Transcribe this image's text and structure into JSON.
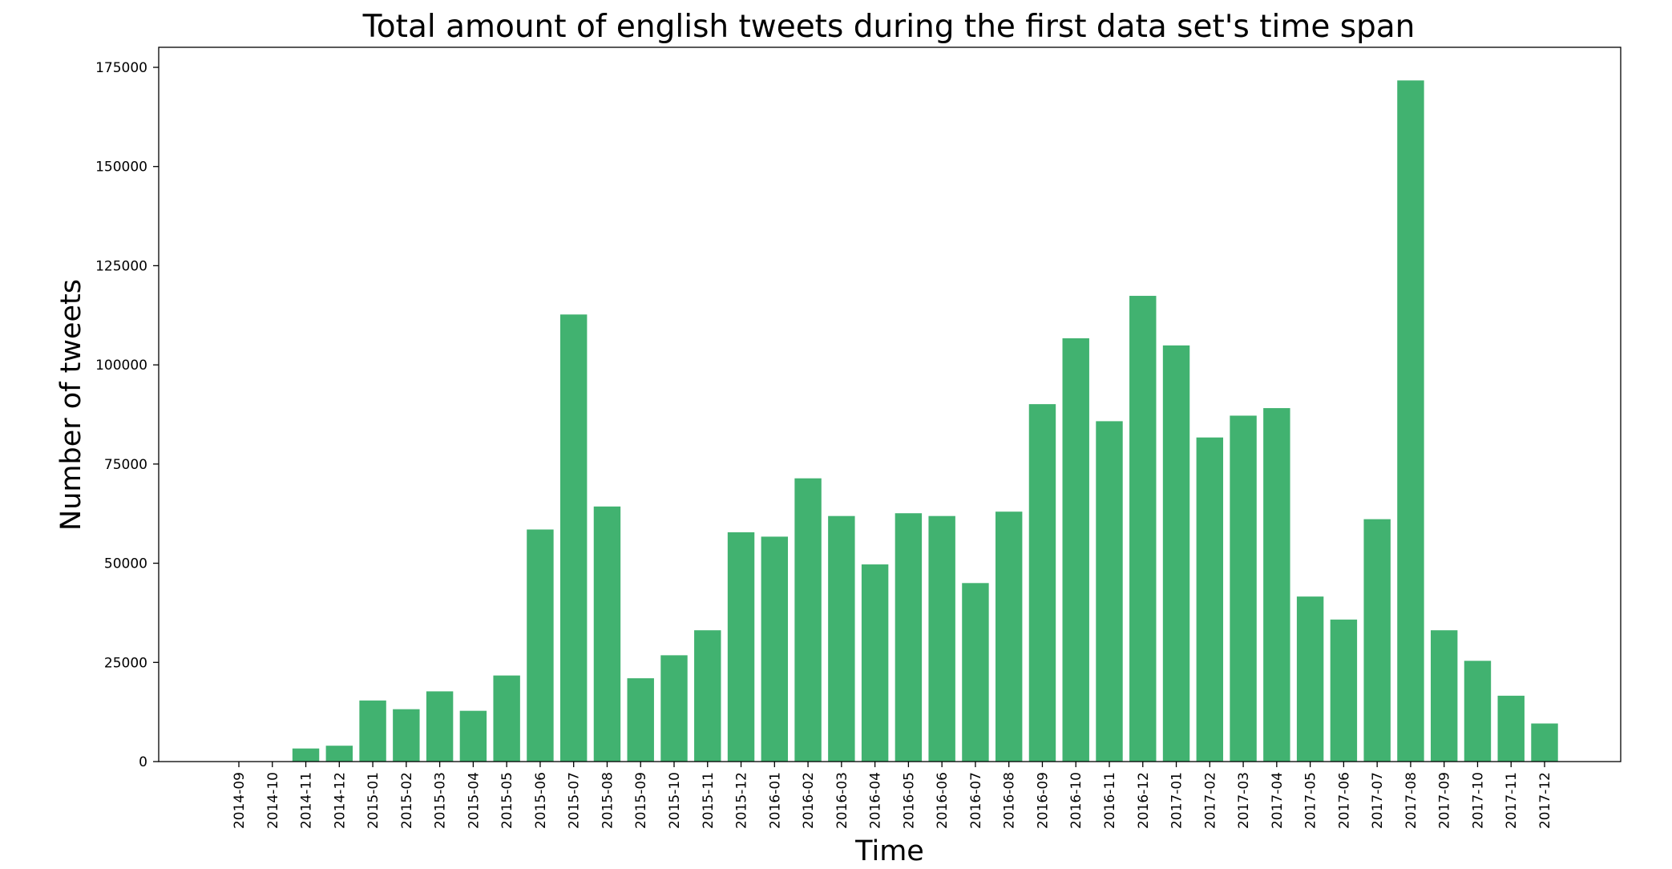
{
  "chart_data": {
    "type": "bar",
    "title": "Total amount of english tweets during the first data set's time span",
    "xlabel": "Time",
    "ylabel": "Number of tweets",
    "ylim": [
      0,
      180000
    ],
    "yticks": [
      0,
      25000,
      50000,
      75000,
      100000,
      125000,
      150000,
      175000
    ],
    "grid": false,
    "bar_color": "#41b270",
    "categories": [
      "2014-09",
      "2014-10",
      "2014-11",
      "2014-12",
      "2015-01",
      "2015-02",
      "2015-03",
      "2015-04",
      "2015-05",
      "2015-06",
      "2015-07",
      "2015-08",
      "2015-09",
      "2015-10",
      "2015-11",
      "2015-12",
      "2016-01",
      "2016-02",
      "2016-03",
      "2016-04",
      "2016-05",
      "2016-06",
      "2016-07",
      "2016-08",
      "2016-09",
      "2016-10",
      "2016-11",
      "2016-12",
      "2017-01",
      "2017-02",
      "2017-03",
      "2017-04",
      "2017-05",
      "2017-06",
      "2017-07",
      "2017-08",
      "2017-09",
      "2017-10",
      "2017-11",
      "2017-12"
    ],
    "values": [
      0,
      0,
      3300,
      4000,
      15400,
      13200,
      17700,
      12800,
      21700,
      58500,
      112700,
      64300,
      21000,
      26800,
      33100,
      57800,
      56700,
      71400,
      61900,
      49700,
      62600,
      61900,
      45000,
      63000,
      90100,
      106700,
      85800,
      117400,
      104900,
      81700,
      87200,
      89100,
      41600,
      35800,
      61100,
      171700,
      33100,
      25400,
      16600,
      9600
    ]
  }
}
